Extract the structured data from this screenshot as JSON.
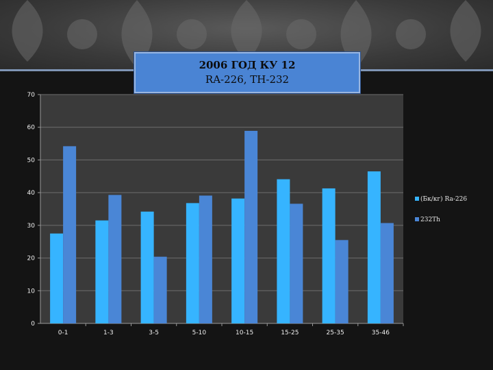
{
  "title": {
    "line1": "2006 ГОД КУ 12",
    "line2": "RA-226, TH-232"
  },
  "colors": {
    "series1": "#36b4ff",
    "series2": "#4a86d6",
    "plot_bg": "#3a3a3a",
    "grid": "#6e6e6e",
    "text": "#f0f0f0"
  },
  "chart_data": {
    "type": "bar",
    "title": "2006 ГОД КУ 12 RA-226, TH-232",
    "xlabel": "",
    "ylabel": "",
    "categories": [
      "0-1",
      "1-3",
      "3-5",
      "5-10",
      "10-15",
      "15-25",
      "25-35",
      "35-46"
    ],
    "series": [
      {
        "name": "(Бк/кг) Ra-226",
        "values": [
          27.5,
          31.5,
          34.2,
          36.8,
          38.2,
          44.1,
          41.3,
          46.5
        ]
      },
      {
        "name": "232Th",
        "values": [
          54.2,
          39.3,
          20.4,
          39.1,
          58.9,
          36.6,
          25.5,
          30.7
        ]
      }
    ],
    "ylim": [
      0,
      70
    ],
    "yticks": [
      0,
      10,
      20,
      30,
      40,
      50,
      60,
      70
    ],
    "grid": true,
    "legend_position": "right"
  }
}
